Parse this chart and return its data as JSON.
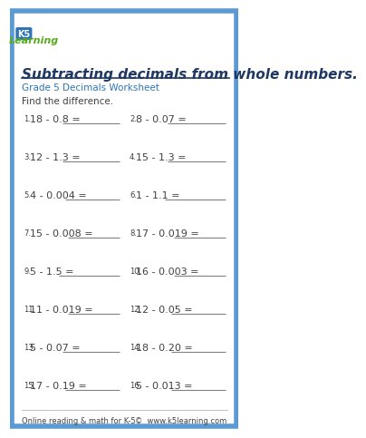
{
  "title": "Subtracting decimals from whole numbers.",
  "subtitle": "Grade 5 Decimals Worksheet",
  "instruction": "Find the difference.",
  "border_color": "#5b9bd5",
  "title_color": "#1f3864",
  "subtitle_color": "#2e75b6",
  "text_color": "#404040",
  "footer_left": "Online reading & math for K-5",
  "footer_right": "©  www.k5learning.com",
  "problems": [
    [
      "18 - 0.8 =",
      "8 - 0.07 ="
    ],
    [
      "12 - 1.3 =",
      "15 - 1.3 ="
    ],
    [
      "4 - 0.004 =",
      "1 - 1.1 ="
    ],
    [
      "15 - 0.008 =",
      "17 - 0.019 ="
    ],
    [
      "5 - 1.5 =",
      "16 - 0.003 ="
    ],
    [
      "11 - 0.019 =",
      "12 - 0.05 ="
    ],
    [
      "5 - 0.07 =",
      "18 - 0.20 ="
    ],
    [
      "17 - 0.19 =",
      "5 - 0.013 ="
    ]
  ],
  "logo_text": "K5\nLearning",
  "background_color": "#ffffff"
}
